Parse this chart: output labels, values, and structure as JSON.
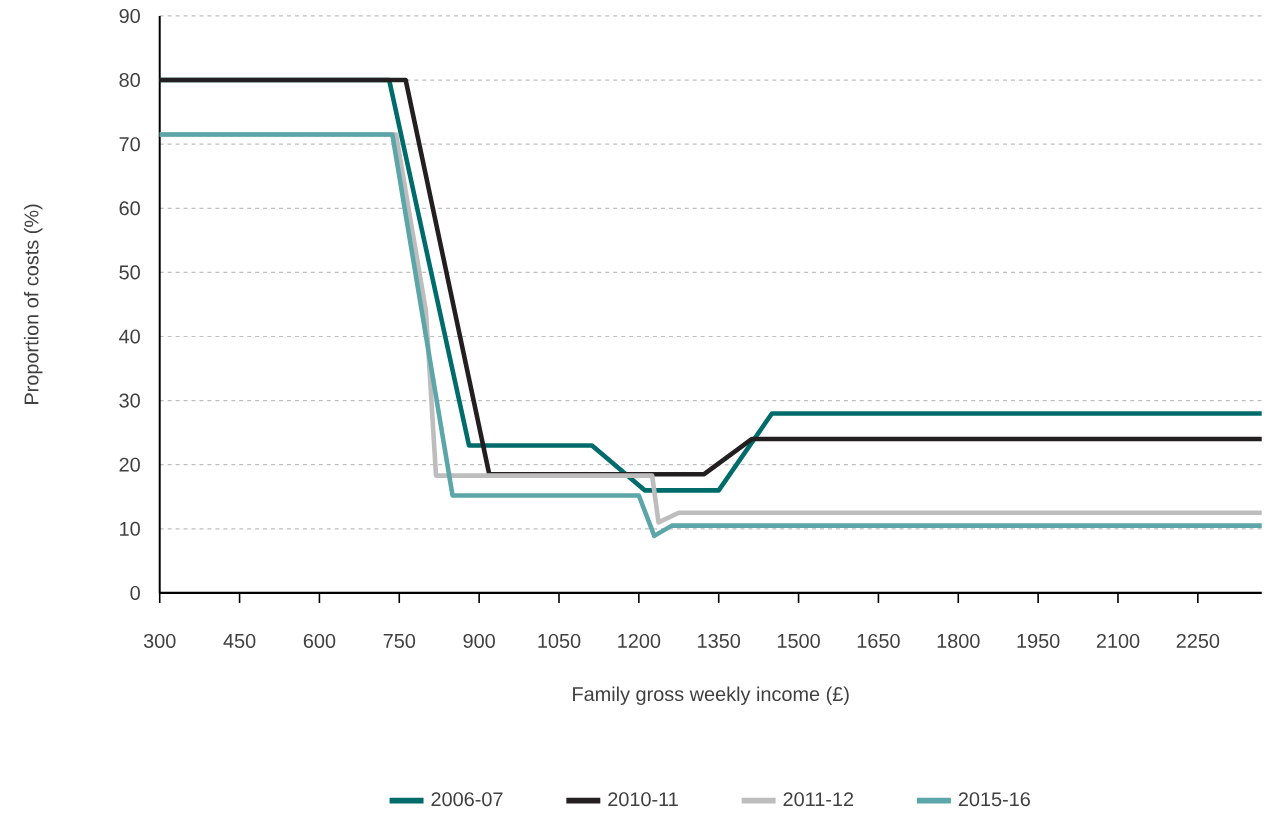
{
  "chart_data": {
    "type": "line",
    "xlabel": "Family gross weekly income (£)",
    "ylabel": "Proportion of costs (%)",
    "xlim": [
      300,
      2370
    ],
    "xticks": [
      300,
      450,
      600,
      750,
      900,
      1050,
      1200,
      1350,
      1500,
      1650,
      1800,
      1950,
      2100,
      2250
    ],
    "ylim": [
      0,
      90
    ],
    "yticks": [
      0,
      10,
      20,
      30,
      40,
      50,
      60,
      70,
      80,
      90
    ],
    "grid": "y",
    "legend": "bottom",
    "marker": "none",
    "line_style": "solid",
    "series": [
      {
        "name": "2006-07",
        "color": "#006b6b",
        "x": [
          300,
          731,
          881,
          1112,
          1211,
          1350,
          1450,
          2370
        ],
        "values": [
          80,
          80,
          23,
          23,
          16,
          16,
          28,
          28
        ]
      },
      {
        "name": "2010-11",
        "color": "#231f20",
        "x": [
          300,
          762,
          919,
          1322,
          1412,
          2370
        ],
        "values": [
          80,
          80,
          18.5,
          18.5,
          24,
          24
        ]
      },
      {
        "name": "2011-12",
        "color": "#bdbdbe",
        "x": [
          300,
          744,
          800,
          819,
          1225,
          1237,
          1275,
          2370
        ],
        "values": [
          71.5,
          71.5,
          44,
          18.3,
          18.3,
          11,
          12.5,
          12.5
        ]
      },
      {
        "name": "2015-16",
        "color": "#5ca5a8",
        "x": [
          300,
          737,
          850,
          1200,
          1229,
          1262,
          2370
        ],
        "values": [
          71.5,
          71.5,
          15.2,
          15.2,
          8.9,
          10.5,
          10.5
        ]
      }
    ]
  }
}
